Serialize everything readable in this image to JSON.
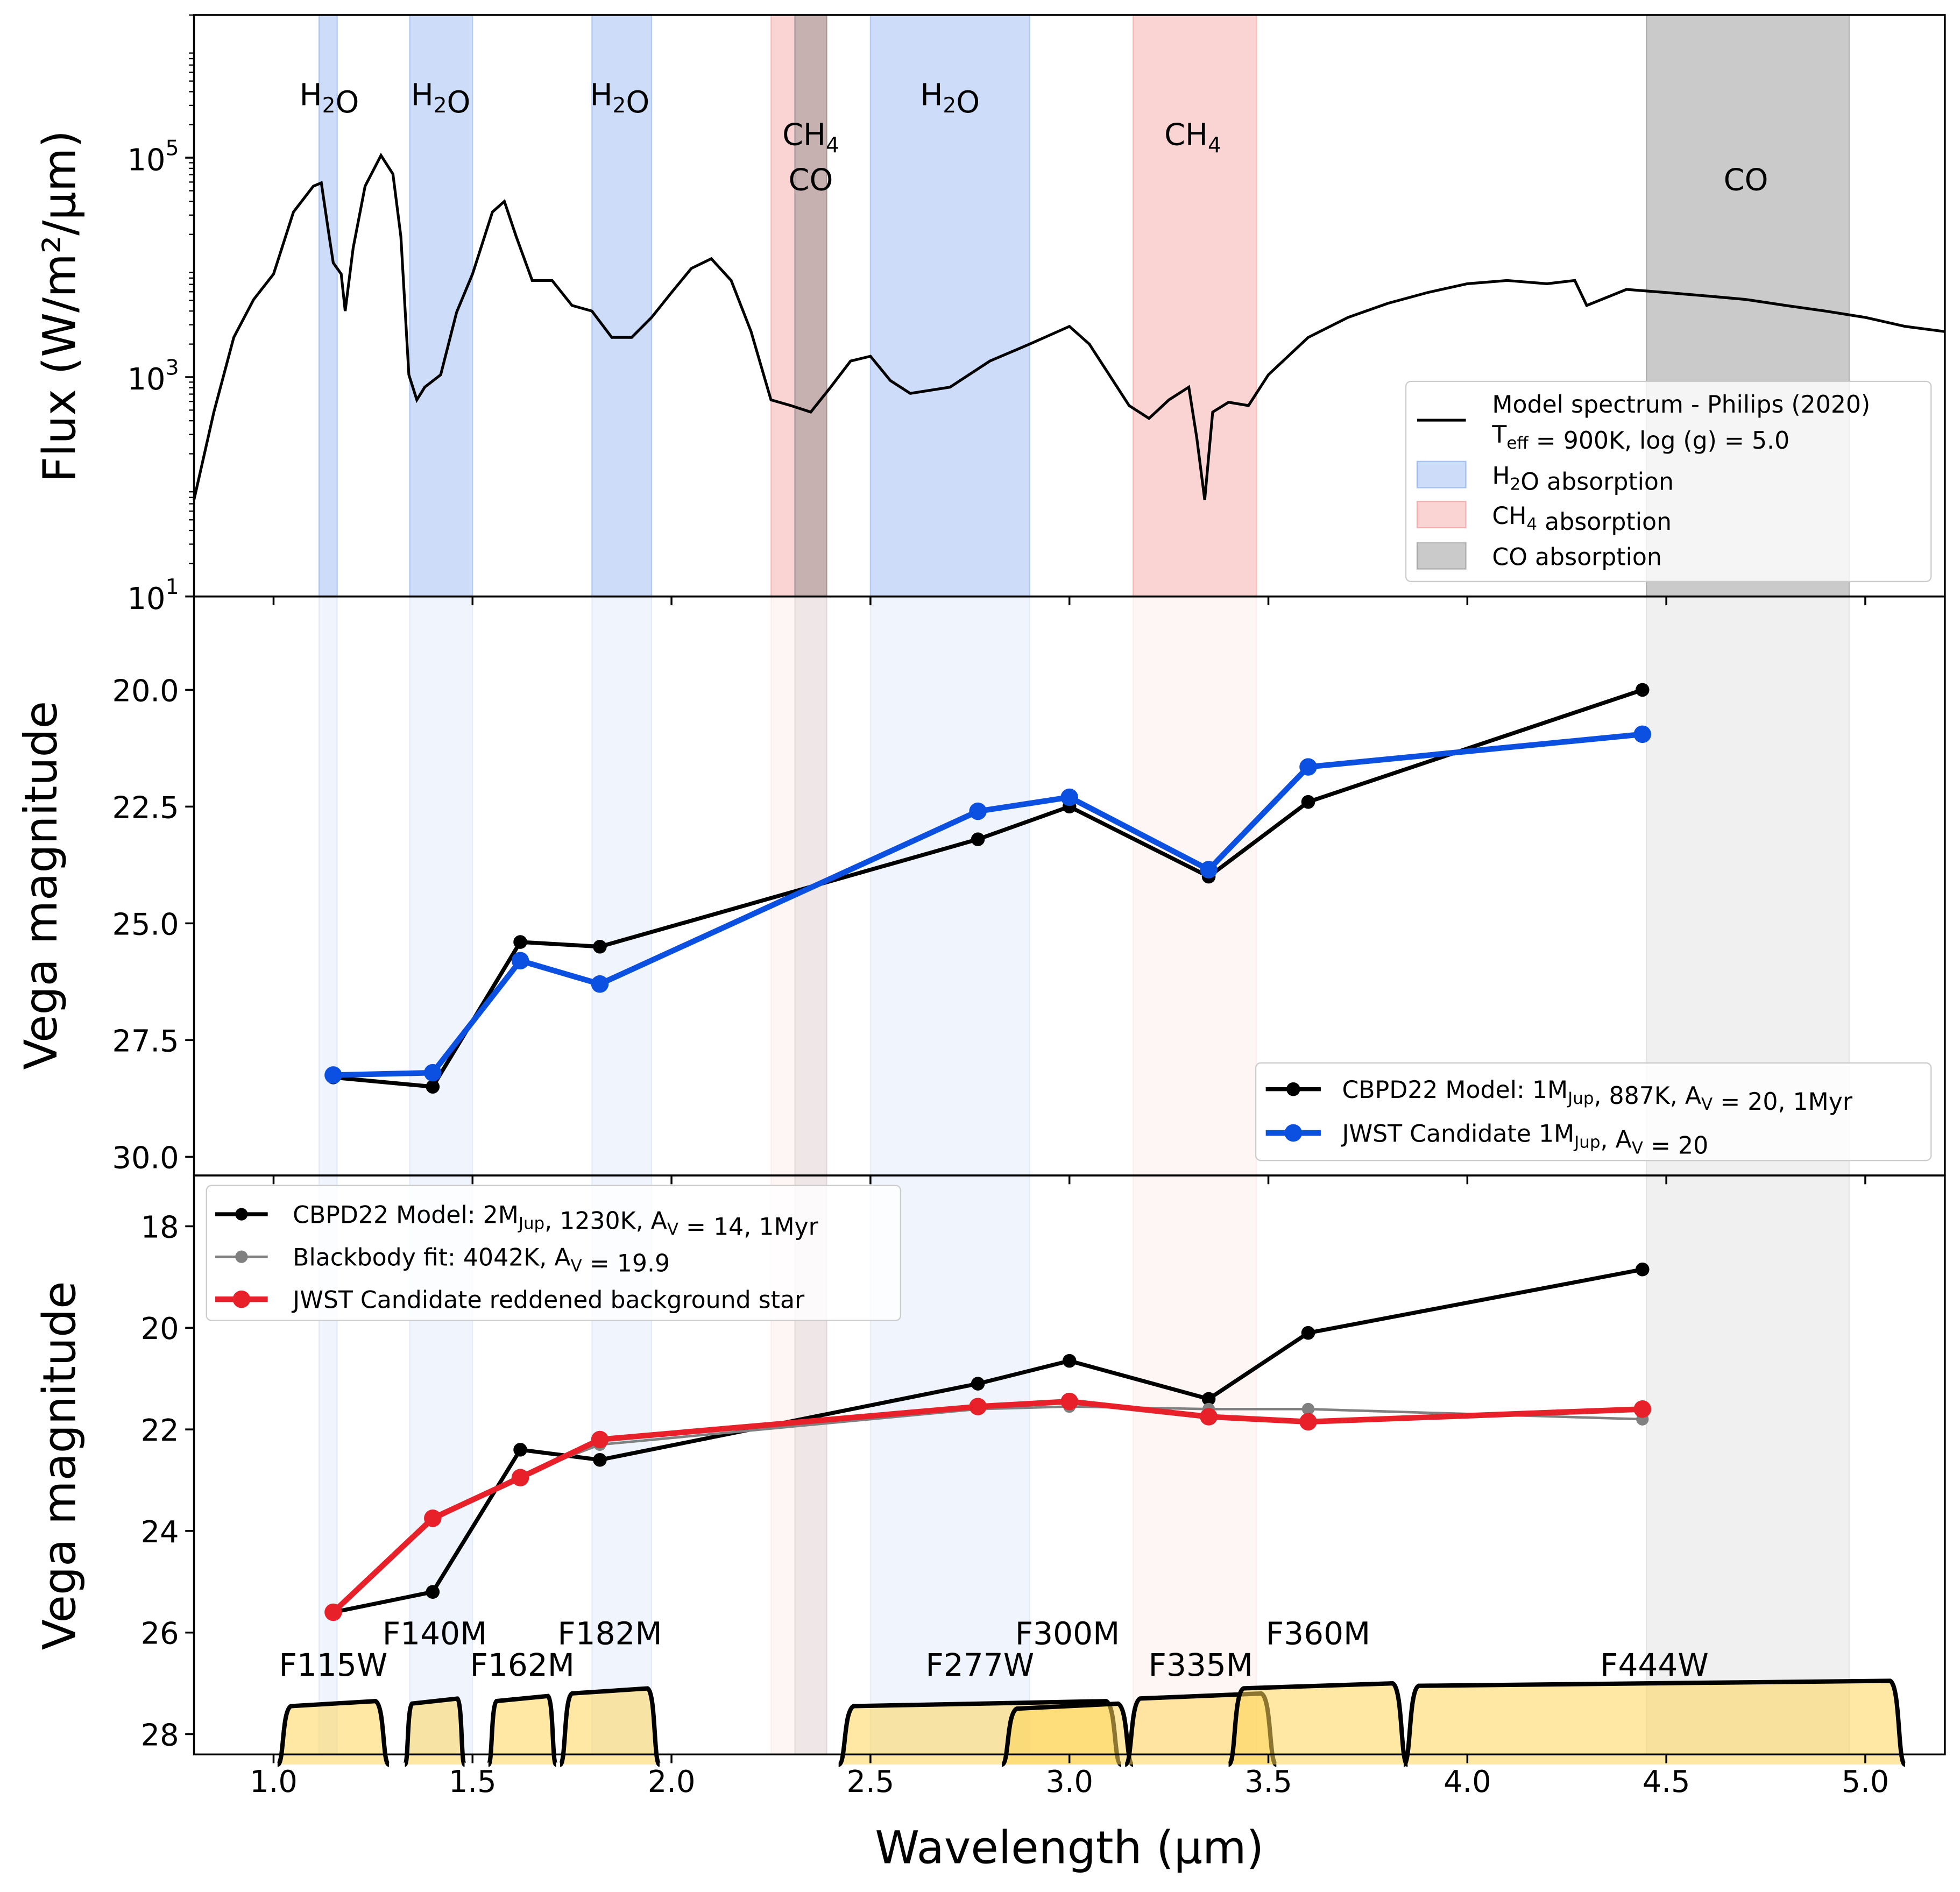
{
  "chart_data": [
    {
      "type": "line",
      "panel": "top",
      "ylabel": "Flux (W/m²/µm)",
      "yscale": "log",
      "ylim": [
        10,
        2000000
      ],
      "xlim": [
        0.8,
        5.2
      ],
      "yticks": [
        {
          "v": 10,
          "base": "10",
          "exp": "1"
        },
        {
          "v": 1000,
          "base": "10",
          "exp": "3"
        },
        {
          "v": 100000,
          "base": "10",
          "exp": "5"
        }
      ],
      "series": [
        {
          "name": "Model spectrum - Philips (2020)",
          "color": "#000000",
          "x": [
            0.8,
            0.85,
            0.9,
            0.95,
            1.0,
            1.05,
            1.1,
            1.12,
            1.14,
            1.15,
            1.17,
            1.18,
            1.2,
            1.23,
            1.27,
            1.3,
            1.32,
            1.34,
            1.36,
            1.38,
            1.42,
            1.46,
            1.5,
            1.55,
            1.58,
            1.61,
            1.65,
            1.7,
            1.75,
            1.8,
            1.85,
            1.9,
            1.95,
            2.0,
            2.05,
            2.1,
            2.15,
            2.2,
            2.25,
            2.3,
            2.35,
            2.4,
            2.45,
            2.5,
            2.55,
            2.6,
            2.7,
            2.8,
            2.9,
            3.0,
            3.05,
            3.1,
            3.15,
            3.2,
            3.25,
            3.3,
            3.32,
            3.34,
            3.36,
            3.4,
            3.45,
            3.5,
            3.6,
            3.7,
            3.8,
            3.9,
            4.0,
            4.1,
            4.2,
            4.27,
            4.3,
            4.4,
            4.5,
            4.6,
            4.7,
            4.8,
            4.9,
            5.0,
            5.1,
            5.2
          ],
          "y": [
            76,
            480,
            2300,
            5100,
            8700,
            32000,
            55000,
            59000,
            19000,
            11000,
            8700,
            4000,
            15000,
            55000,
            105000,
            71000,
            19000,
            1050,
            620,
            810,
            1050,
            3900,
            8700,
            32000,
            40000,
            19000,
            7600,
            7600,
            4500,
            4000,
            2300,
            2300,
            3500,
            5900,
            9800,
            12000,
            7600,
            2600,
            620,
            550,
            480,
            810,
            1400,
            1550,
            930,
            710,
            810,
            1400,
            2000,
            2900,
            2000,
            1050,
            550,
            420,
            620,
            810,
            280,
            76,
            480,
            590,
            550,
            1050,
            2300,
            3500,
            4700,
            5900,
            7100,
            7600,
            7100,
            7600,
            4500,
            6300,
            5900,
            5500,
            5100,
            4500,
            4000,
            3500,
            2900,
            2600
          ]
        }
      ],
      "legend": {
        "placement": "lower-right",
        "line1": "Model spectrum - Philips (2020)",
        "line2": {
          "a": "T",
          "sub": "eff",
          "b": " = 900K, log (g) = 5.0"
        },
        "h2o": {
          "a": "H",
          "sub": "2",
          "b": "O absorption"
        },
        "ch4": {
          "a": "CH",
          "sub": "4",
          "b": " absorption"
        },
        "co": {
          "a": "CO absorption",
          "sub": "",
          "b": ""
        }
      },
      "annotations": [
        {
          "x": 1.14,
          "row": 1,
          "a": "H",
          "sub": "2",
          "b": "O"
        },
        {
          "x": 1.42,
          "row": 1,
          "a": "H",
          "sub": "2",
          "b": "O"
        },
        {
          "x": 1.87,
          "row": 1,
          "a": "H",
          "sub": "2",
          "b": "O"
        },
        {
          "x": 2.7,
          "row": 1,
          "a": "H",
          "sub": "2",
          "b": "O"
        },
        {
          "x": 2.35,
          "row": 2,
          "a": "CH",
          "sub": "4",
          "b": ""
        },
        {
          "x": 2.35,
          "row": 3,
          "a": "CO",
          "sub": "",
          "b": ""
        },
        {
          "x": 3.31,
          "row": 2,
          "a": "CH",
          "sub": "4",
          "b": ""
        },
        {
          "x": 4.7,
          "row": 3,
          "a": "CO",
          "sub": "",
          "b": ""
        }
      ]
    },
    {
      "type": "line",
      "panel": "middle",
      "ylabel": "Vega magnitude",
      "ylim": [
        30.4,
        18.0
      ],
      "yticks": [
        "20.0",
        "22.5",
        "25.0",
        "27.5",
        "30.0"
      ],
      "x": [
        1.15,
        1.4,
        1.62,
        1.82,
        2.77,
        3.0,
        3.35,
        3.6,
        4.44
      ],
      "series": [
        {
          "name_parts": {
            "a": "CBPD22 Model: 1M",
            "sub": "Jup",
            "b": ", 887K, A",
            "sub2": "V",
            "c": " = 20,  1Myr"
          },
          "color": "#000000",
          "values": [
            28.3,
            28.5,
            25.4,
            25.5,
            23.2,
            22.5,
            24.0,
            22.4,
            20.0
          ]
        },
        {
          "name_parts": {
            "a": "JWST Candidate 1M",
            "sub": "Jup",
            "b": ", A",
            "sub2": "V",
            "c": " = 20"
          },
          "color": "#0b50e0",
          "values": [
            28.25,
            28.2,
            25.8,
            26.3,
            22.6,
            22.3,
            23.85,
            21.65,
            20.95
          ]
        }
      ],
      "legend": {
        "placement": "lower-right"
      }
    },
    {
      "type": "line",
      "panel": "bottom",
      "ylabel": "Vega magnitude",
      "xlabel": "Wavelength (µm)",
      "ylim": [
        28.4,
        17.0
      ],
      "yticks": [
        "18",
        "20",
        "22",
        "24",
        "26",
        "28"
      ],
      "xticks": [
        "1.0",
        "1.5",
        "2.0",
        "2.5",
        "3.0",
        "3.5",
        "4.0",
        "4.5",
        "5.0"
      ],
      "x": [
        1.15,
        1.4,
        1.62,
        1.82,
        2.77,
        3.0,
        3.35,
        3.6,
        4.44
      ],
      "series": [
        {
          "name_parts": {
            "a": "CBPD22 Model: 2M",
            "sub": "Jup",
            "b": ", 1230K, A",
            "sub2": "V",
            "c": " = 14,  1Myr"
          },
          "color": "#000000",
          "values": [
            25.6,
            25.2,
            22.4,
            22.6,
            21.1,
            20.65,
            21.4,
            20.1,
            18.85
          ]
        },
        {
          "name_parts": {
            "a": "Blackbody fit: 4042K, A",
            "sub": "V",
            "b": " = 19.9",
            "sub2": "",
            "c": ""
          },
          "color": "#808080",
          "values": [
            25.6,
            23.8,
            22.9,
            22.3,
            21.6,
            21.55,
            21.6,
            21.6,
            21.8
          ]
        },
        {
          "name_parts": {
            "a": "JWST Candidate reddened background star",
            "sub": "",
            "b": "",
            "sub2": "",
            "c": ""
          },
          "color": "#e8202a",
          "values": [
            25.6,
            23.75,
            22.95,
            22.2,
            21.55,
            21.45,
            21.75,
            21.85,
            21.6
          ]
        }
      ],
      "legend": {
        "placement": "upper-left"
      },
      "filters": [
        {
          "name": "F115W",
          "lo": 1.01,
          "hi": 1.29,
          "top": 27.35,
          "label_row": 2
        },
        {
          "name": "F140M",
          "lo": 1.33,
          "hi": 1.48,
          "top": 27.3,
          "label_row": 1
        },
        {
          "name": "F162M",
          "lo": 1.54,
          "hi": 1.71,
          "top": 27.25,
          "label_row": 2
        },
        {
          "name": "F182M",
          "lo": 1.72,
          "hi": 1.97,
          "top": 27.1,
          "label_row": 1
        },
        {
          "name": "F277W",
          "lo": 2.42,
          "hi": 3.13,
          "top": 27.35,
          "label_row": 2
        },
        {
          "name": "F300M",
          "lo": 2.83,
          "hi": 3.16,
          "top": 27.4,
          "label_row": 1
        },
        {
          "name": "F335M",
          "lo": 3.14,
          "hi": 3.52,
          "top": 27.2,
          "label_row": 2
        },
        {
          "name": "F360M",
          "lo": 3.4,
          "hi": 3.85,
          "top": 27.0,
          "label_row": 1
        },
        {
          "name": "F444W",
          "lo": 3.84,
          "hi": 5.1,
          "top": 26.95,
          "label_row": 2
        }
      ]
    }
  ],
  "bands": [
    {
      "species": "H2O",
      "lo": 1.114,
      "hi": 1.16,
      "color": "#6495ed"
    },
    {
      "species": "H2O",
      "lo": 1.342,
      "hi": 1.5,
      "color": "#6495ed"
    },
    {
      "species": "H2O",
      "lo": 1.8,
      "hi": 1.95,
      "color": "#6495ed"
    },
    {
      "species": "H2O",
      "lo": 2.5,
      "hi": 2.9,
      "color": "#6495ed"
    },
    {
      "species": "CH4",
      "lo": 2.25,
      "hi": 2.39,
      "color": "#f08080"
    },
    {
      "species": "CH4",
      "lo": 3.16,
      "hi": 3.47,
      "color": "#f08080"
    },
    {
      "species": "CO",
      "lo": 2.31,
      "hi": 2.39,
      "color": "#808080"
    },
    {
      "species": "CO",
      "lo": 4.45,
      "hi": 4.96,
      "color": "#808080"
    }
  ],
  "filter_color": "#fdd55a"
}
